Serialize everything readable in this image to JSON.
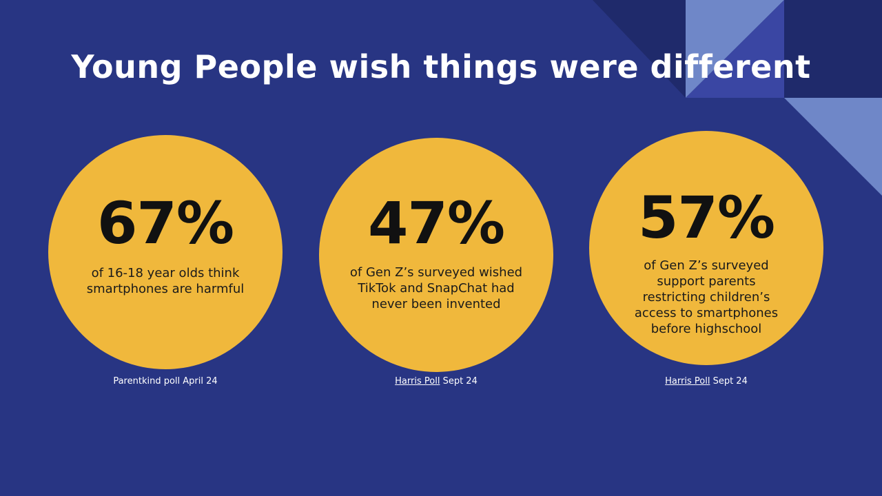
{
  "slide": {
    "title": "Young People wish things were different"
  },
  "stats": [
    {
      "percent": "67%",
      "description": "of 16-18 year olds think smartphones are harmful",
      "source_text": "Parentkind poll April 24"
    },
    {
      "percent": "47%",
      "description": "of Gen Z’s surveyed wished TikTok and SnapChat had never been invented",
      "source_link": "Harris Poll",
      "source_suffix": " Sept 24"
    },
    {
      "percent": "57%",
      "description": "of Gen Z’s surveyed support parents restricting children’s access to smartphones before highschool",
      "source_link": "Harris Poll",
      "source_suffix": " Sept 24"
    }
  ],
  "colors": {
    "background": "#283583",
    "circle": "#f0b83c",
    "accent_dark": "#1f2a6b",
    "accent_mid": "#3a46a3",
    "accent_light": "#6f87c8"
  }
}
